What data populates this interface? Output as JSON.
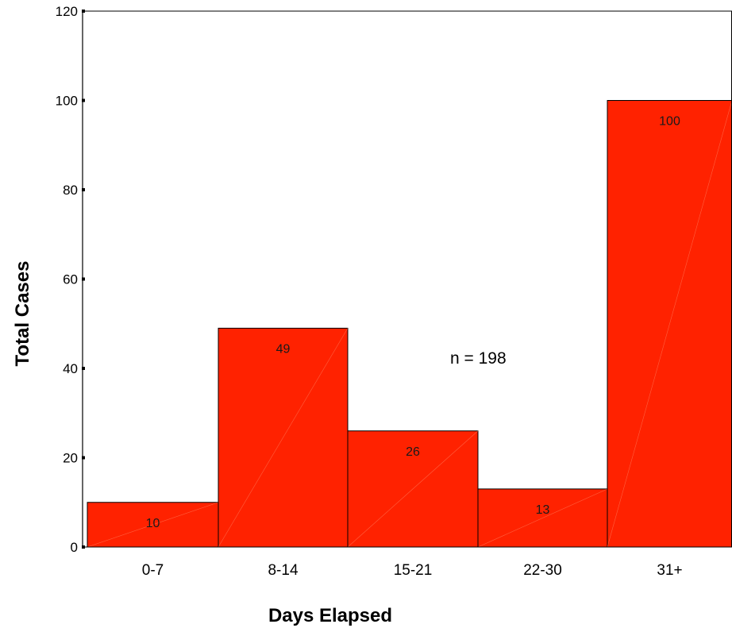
{
  "chart_data": {
    "type": "bar",
    "categories": [
      "0-7",
      "8-14",
      "15-21",
      "22-30",
      "31+"
    ],
    "values": [
      10,
      49,
      26,
      13,
      100
    ],
    "value_labels": [
      "10",
      "49",
      "26",
      "13",
      "100"
    ],
    "xlabel": "Days Elapsed",
    "ylabel": "Total Cases",
    "ylim": [
      0,
      120
    ],
    "yticks": [
      "0",
      "20",
      "40",
      "60",
      "80",
      "100",
      "120"
    ],
    "annotation": "n = 198",
    "grid": false,
    "bar_color": "#ff2200",
    "bar_border_color": "#000000"
  }
}
